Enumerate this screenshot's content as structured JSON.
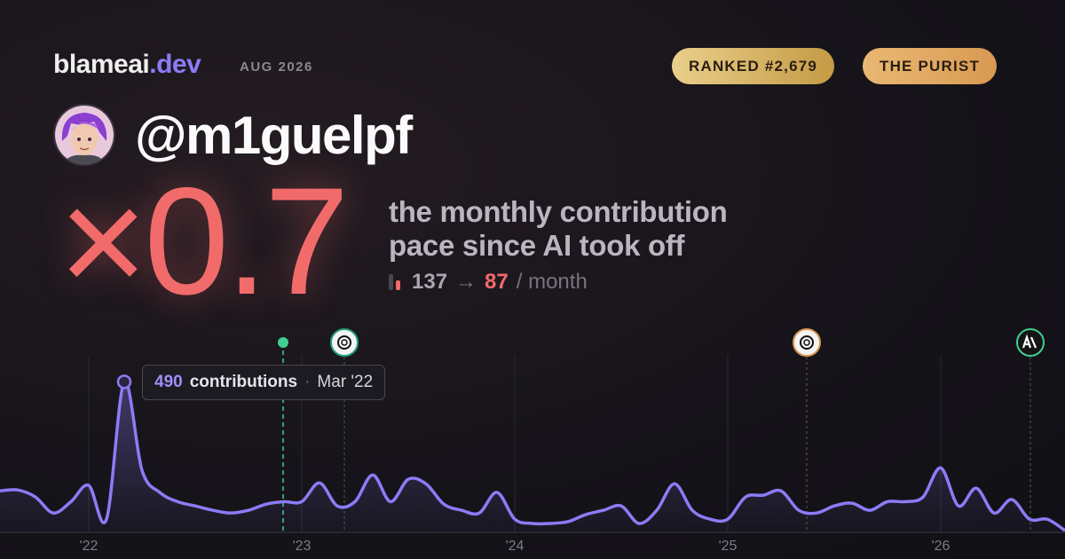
{
  "header": {
    "brand": "blameai",
    "brand_suffix": ".dev",
    "period": "AUG 2026",
    "badges": [
      "RANKED #2,679",
      "THE PURIST"
    ]
  },
  "profile": {
    "handle": "@m1guelpf"
  },
  "headline": {
    "multiplier": "×0.7",
    "description_lines": [
      "the monthly contribution",
      "pace since AI took off"
    ],
    "before": "137",
    "arrow": "→",
    "after": "87",
    "unit": "/ month"
  },
  "chart_data": {
    "type": "line",
    "categories": [
      null,
      null,
      null,
      null,
      null,
      "'22",
      null,
      null,
      null,
      null,
      null,
      null,
      null,
      null,
      null,
      null,
      null,
      "'23",
      null,
      null,
      null,
      null,
      null,
      null,
      null,
      null,
      null,
      null,
      null,
      "'24",
      null,
      null,
      null,
      null,
      null,
      null,
      null,
      null,
      null,
      null,
      null,
      "'25",
      null,
      null,
      null,
      null,
      null,
      null,
      null,
      null,
      null,
      null,
      null,
      "'26",
      null,
      null,
      null,
      null,
      null,
      null,
      null
    ],
    "values": [
      135,
      138,
      115,
      63,
      100,
      153,
      43,
      490,
      202,
      130,
      100,
      86,
      72,
      63,
      72,
      92,
      100,
      100,
      161,
      86,
      100,
      187,
      100,
      173,
      158,
      92,
      72,
      63,
      130,
      43,
      29,
      29,
      35,
      58,
      72,
      86,
      29,
      72,
      158,
      72,
      43,
      43,
      115,
      121,
      135,
      72,
      63,
      86,
      95,
      72,
      100,
      100,
      115,
      210,
      86,
      144,
      63,
      107,
      43,
      43,
      6
    ],
    "color": "#8b7cf6",
    "ylim": [
      0,
      540
    ],
    "tooltip": {
      "unit": "contributions",
      "separator": "·",
      "date": "Mar '22"
    }
  }
}
